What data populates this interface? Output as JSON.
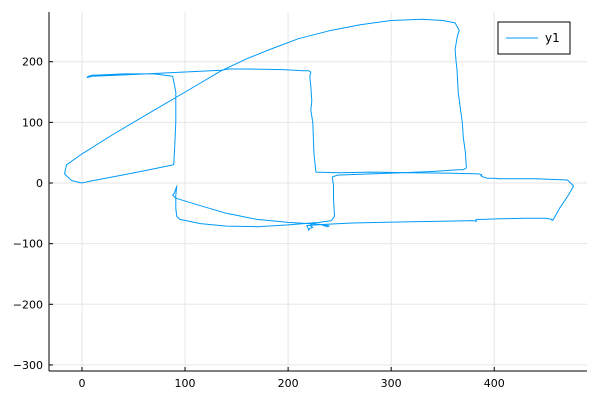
{
  "chart_data": {
    "type": "line",
    "title": "",
    "xlabel": "",
    "ylabel": "",
    "xlim": [
      -32,
      490
    ],
    "ylim": [
      -310,
      282
    ],
    "xticks": [
      0,
      100,
      200,
      300,
      400
    ],
    "yticks": [
      -300,
      -200,
      -100,
      0,
      100,
      200
    ],
    "xtick_labels": [
      "0",
      "100",
      "200",
      "300",
      "400"
    ],
    "ytick_labels": [
      "-300",
      "-200",
      "-100",
      "0",
      "100",
      "200"
    ],
    "grid": true,
    "legend": {
      "position": "top-right"
    },
    "series": [
      {
        "name": "y1",
        "color": "#009af9",
        "x": [
          0,
          -10,
          -17,
          -15,
          0,
          30,
          70,
          110,
          135,
          160,
          185,
          210,
          240,
          270,
          300,
          330,
          350,
          362,
          366,
          364,
          362,
          363,
          364,
          365,
          367,
          369,
          370,
          372,
          373,
          370,
          365,
          340,
          310,
          280,
          248,
          243,
          244,
          244,
          245,
          242,
          230,
          200,
          170,
          140,
          115,
          95,
          92,
          91,
          91,
          92,
          91,
          90,
          89,
          88,
          91,
          110,
          140,
          170,
          200,
          230,
          236,
          240,
          238,
          236,
          233,
          225,
          223,
          221,
          224,
          221,
          220,
          219,
          218,
          228,
          238,
          262,
          290,
          320,
          350,
          378,
          383,
          382,
          383,
          389,
          405,
          430,
          450,
          456,
          456,
          457,
          458,
          464,
          472,
          477,
          471,
          440,
          405,
          400,
          393,
          389,
          388,
          387,
          388,
          387,
          385,
          360,
          320,
          280,
          250,
          227,
          225,
          224,
          222,
          223,
          222,
          221,
          222,
          220,
          215,
          195,
          160,
          142,
          135,
          100,
          50,
          10,
          5,
          6,
          10,
          15,
          40,
          70,
          88,
          91,
          91,
          90,
          89,
          60,
          30,
          5,
          0
        ],
        "y": [
          0,
          4,
          15,
          30,
          48,
          80,
          120,
          160,
          185,
          205,
          222,
          238,
          251,
          261,
          268,
          270,
          268,
          264,
          252,
          240,
          220,
          200,
          185,
          150,
          125,
          100,
          75,
          50,
          25,
          22,
          22,
          19,
          17,
          15,
          13,
          10,
          -5,
          -25,
          -55,
          -62,
          -65,
          -69,
          -72,
          -71,
          -67,
          -60,
          -55,
          -42,
          -20,
          -5,
          -10,
          -15,
          -18,
          -20,
          -25,
          -35,
          -50,
          -60,
          -65,
          -68,
          -69,
          -71,
          -72,
          -71,
          -69,
          -67,
          -68,
          -70,
          -73,
          -75,
          -78,
          -73,
          -70,
          -69,
          -68,
          -66,
          -65,
          -64,
          -63,
          -62,
          -63,
          -61,
          -60,
          -60,
          -59,
          -58,
          -58,
          -60,
          -62,
          -61,
          -58,
          -40,
          -20,
          -5,
          5,
          7,
          7,
          8,
          8,
          10,
          11,
          12,
          13,
          14,
          15,
          16,
          17,
          18,
          17,
          18,
          50,
          100,
          120,
          135,
          160,
          175,
          183,
          185,
          185,
          187,
          188,
          188,
          186,
          183,
          179,
          176,
          174,
          176,
          178,
          178,
          180,
          180,
          176,
          150,
          100,
          60,
          30,
          20,
          10,
          2,
          0
        ]
      }
    ]
  }
}
